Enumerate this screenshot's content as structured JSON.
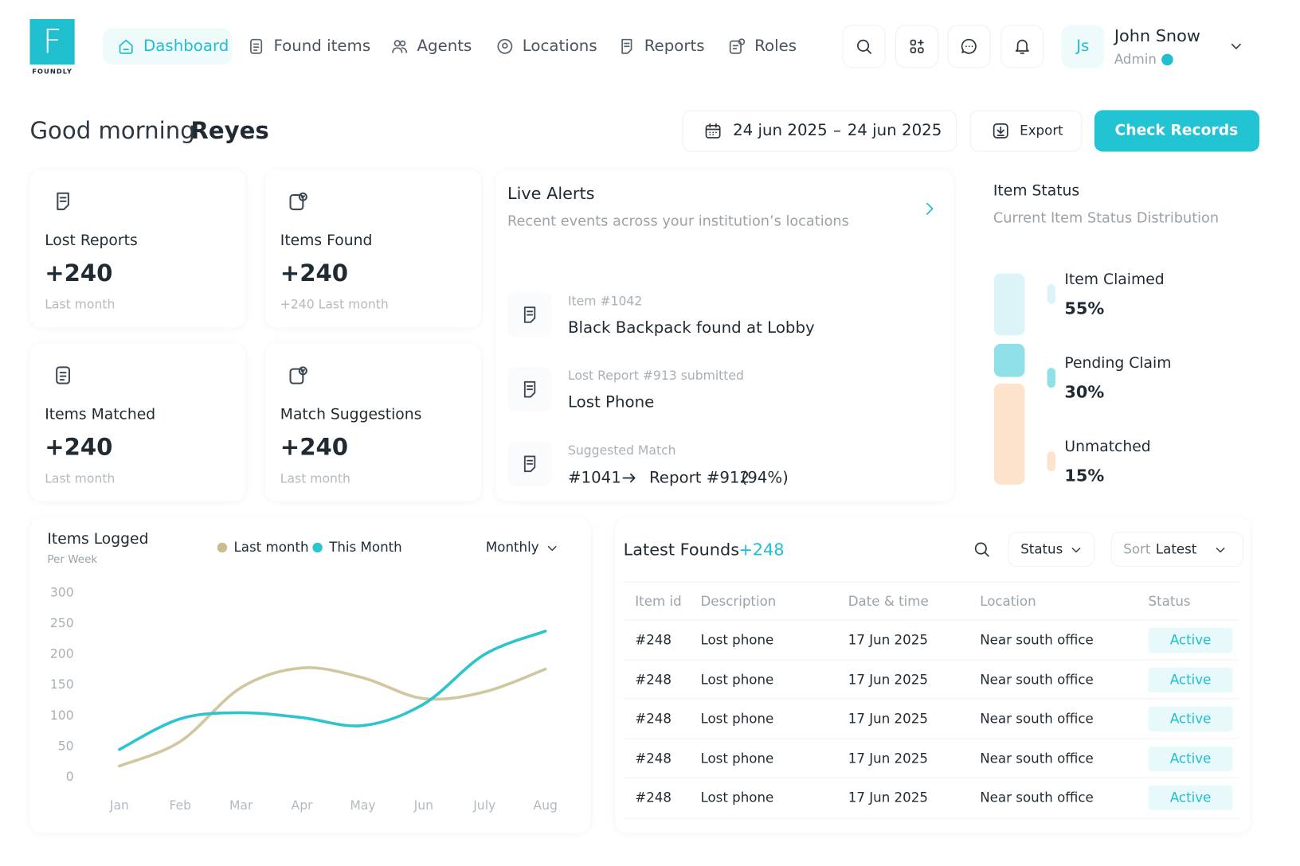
{
  "brand": {
    "logo": "F",
    "name": "FOUNDLY"
  },
  "nav": {
    "items": [
      "Dashboard",
      "Found items",
      "Agents",
      "Locations",
      "Reports",
      "Roles"
    ]
  },
  "user": {
    "initials": "Js",
    "name": "John Snow",
    "role": "Admin"
  },
  "greeting": {
    "salutation": "Good morning",
    "name": "Reyes"
  },
  "date_range": {
    "start": "24 jun 2025",
    "separator": "–",
    "end": "24 jun 2025"
  },
  "actions": {
    "export": "Export",
    "primary": "Check Records"
  },
  "stats": [
    {
      "title": "Lost Reports",
      "value": "+240",
      "note": "Last month"
    },
    {
      "title": "Items Found",
      "value": "+240",
      "note": "+240 Last month"
    },
    {
      "title": "Items Matched",
      "value": "+240",
      "note": "Last month"
    },
    {
      "title": "Match Suggestions",
      "value": "+240",
      "note": "Last month"
    }
  ],
  "live_alerts": {
    "title": "Live Alerts",
    "subtitle": "Recent events across your institution’s locations",
    "items": [
      {
        "meta": "Item #1042",
        "text": "Black Backpack found at Lobby"
      },
      {
        "meta": "Lost Report #913 submitted",
        "text": "Lost Phone"
      },
      {
        "meta": "Suggested Match",
        "from": "#1041",
        "to": "Report #912",
        "score": "(94%)"
      }
    ]
  },
  "item_status": {
    "title": "Item Status",
    "subtitle": "Current Item Status Distribution",
    "items": [
      {
        "label": "Item Claimed",
        "value": "55%",
        "color": "#dcf4f7"
      },
      {
        "label": "Pending Claim",
        "value": "30%",
        "color": "#90e0e8"
      },
      {
        "label": "Unmatched",
        "value": "15%",
        "color": "#fde2cc"
      }
    ]
  },
  "chart_data": {
    "type": "line",
    "title": "Items Logged",
    "subtitle": "Per Week",
    "period": "Monthly",
    "categories": [
      "Jan",
      "Feb",
      "Mar",
      "Apr",
      "May",
      "Jun",
      "July",
      "Aug"
    ],
    "series": [
      {
        "name": "Last month",
        "color": "#c9bd8e",
        "values": [
          18,
          58,
          146,
          178,
          162,
          128,
          139,
          176
        ]
      },
      {
        "name": "This Month",
        "color": "#2ec4cf",
        "values": [
          45,
          95,
          105,
          97,
          84,
          119,
          200,
          238
        ]
      }
    ],
    "ylim": [
      0,
      300
    ],
    "yticks": [
      0,
      50,
      100,
      150,
      200,
      250,
      300
    ]
  },
  "latest_founds": {
    "title": "Latest Founds",
    "count": "+248",
    "filter": "Status",
    "sort_label": "Sort",
    "sort_value": "Latest",
    "columns": [
      "Item id",
      "Description",
      "Date & time",
      "Location",
      "Status"
    ],
    "rows": [
      [
        "#248",
        "Lost phone",
        "17 Jun 2025",
        "Near south office",
        "Active"
      ],
      [
        "#248",
        "Lost phone",
        "17 Jun 2025",
        "Near south office",
        "Active"
      ],
      [
        "#248",
        "Lost phone",
        "17 Jun 2025",
        "Near south office",
        "Active"
      ],
      [
        "#248",
        "Lost phone",
        "17 Jun 2025",
        "Near south office",
        "Active"
      ],
      [
        "#248",
        "Lost phone",
        "17 Jun 2025",
        "Near south office",
        "Active"
      ]
    ]
  }
}
